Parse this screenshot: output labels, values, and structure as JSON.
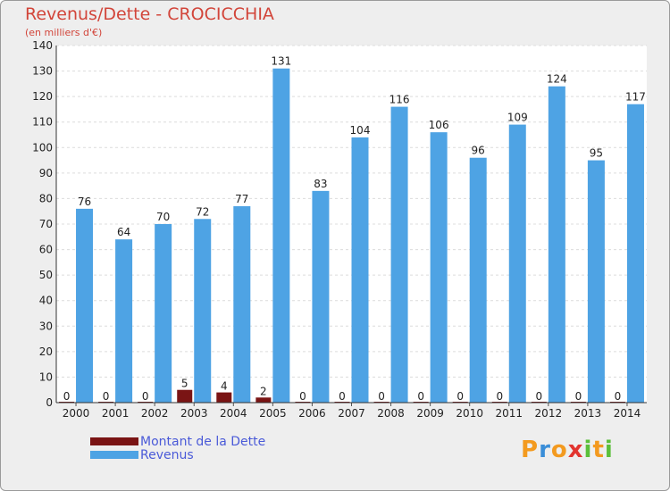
{
  "title": "Revenus/Dette - CROCICCHIA",
  "subtitle": "(en milliers d'€)",
  "logo": {
    "letters": [
      "P",
      "r",
      "o",
      "x",
      "i",
      "t",
      "i"
    ],
    "colors": [
      "#f39a1f",
      "#3a8ed8",
      "#f39a1f",
      "#e2342f",
      "#5bbf3a",
      "#f39a1f",
      "#5bbf3a"
    ]
  },
  "chart_data": {
    "type": "bar",
    "title": "Revenus/Dette - CROCICCHIA",
    "subtitle": "(en milliers d'€)",
    "categories": [
      "2000",
      "2001",
      "2002",
      "2003",
      "2004",
      "2005",
      "2006",
      "2007",
      "2008",
      "2009",
      "2010",
      "2011",
      "2012",
      "2013",
      "2014"
    ],
    "series": [
      {
        "name": "Montant de la Dette",
        "color": "#7a1414",
        "values": [
          0,
          0,
          0,
          5,
          4,
          2,
          0,
          0,
          0,
          0,
          0,
          0,
          0,
          0,
          0
        ]
      },
      {
        "name": "Revenus",
        "color": "#4ea3e4",
        "values": [
          76,
          64,
          70,
          72,
          77,
          131,
          83,
          104,
          116,
          106,
          96,
          109,
          124,
          95,
          117
        ]
      }
    ],
    "ylim": [
      0,
      140
    ],
    "yticks": [
      0,
      10,
      20,
      30,
      40,
      50,
      60,
      70,
      80,
      90,
      100,
      110,
      120,
      130,
      140
    ],
    "grid": true,
    "legend": "bottom-left"
  }
}
